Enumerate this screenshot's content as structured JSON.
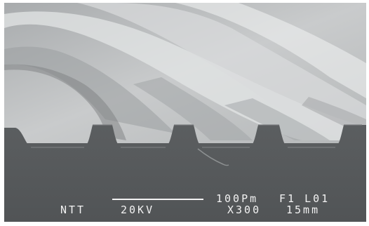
{
  "micrograph": {
    "subject": "grating-ridges",
    "databar": {
      "organization": "NTT",
      "voltage": "20KV",
      "scale": "100Pm",
      "frame": "F1 L01",
      "magnification": "X300",
      "working_distance": "15mm"
    },
    "colors": {
      "background": "#5e6163",
      "surface_light": "#cfd1d2",
      "surface_dark": "#8e9193",
      "text": "#f2f2f2"
    }
  }
}
